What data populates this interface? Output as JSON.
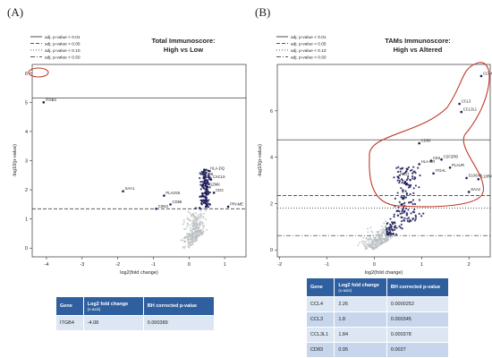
{
  "panels": [
    {
      "letter": "(A)"
    },
    {
      "letter": "(B)"
    }
  ],
  "legend": [
    "adj. p-value < 0.01",
    "adj. p-value < 0.05",
    "adj. p-value < 0.10",
    "adj. p-value < 0.50"
  ],
  "chart_data": [
    {
      "type": "scatter",
      "title": "Total Immunoscore:",
      "subtitle": "High vs Low",
      "xlabel": "log2(fold change)",
      "ylabel": "-log10(p-value)",
      "xlim": [
        -4.4,
        1.6
      ],
      "ylim": [
        -0.3,
        6.3
      ],
      "xticks": [
        "-4",
        "-3",
        "-2",
        "-1",
        "0",
        "1"
      ],
      "yticks": [
        "0",
        "1",
        "2",
        "3",
        "4",
        "5",
        "6"
      ],
      "thresholds": [
        {
          "y": 5.15,
          "style": "solid"
        },
        {
          "y": 1.35,
          "style": "dashed"
        }
      ],
      "labels": [
        {
          "text": "ITGB4",
          "x": -4.08,
          "y": 5.0
        },
        {
          "text": "SAA1",
          "x": -1.85,
          "y": 1.95
        },
        {
          "text": "PLA2G6",
          "x": -0.7,
          "y": 1.8
        },
        {
          "text": "CD58",
          "x": -0.52,
          "y": 1.5
        },
        {
          "text": "CSN3",
          "x": -0.92,
          "y": 1.35
        },
        {
          "text": "PRAME",
          "x": 1.1,
          "y": 1.42
        },
        {
          "text": "HLA-DQ",
          "x": 0.55,
          "y": 2.65
        },
        {
          "text": "CD8",
          "x": 0.42,
          "y": 2.45
        },
        {
          "text": "CXCL9",
          "x": 0.62,
          "y": 2.35
        },
        {
          "text": "GZMK",
          "x": 0.52,
          "y": 2.1
        },
        {
          "text": "CD3",
          "x": 0.7,
          "y": 1.9
        }
      ],
      "table": {
        "headers": [
          "Gene",
          "Log2 fold change",
          "BH corrected p-value"
        ],
        "header_sub": [
          "",
          "(x-axis)",
          ""
        ],
        "rows": [
          [
            "ITGB4",
            "-4.08",
            "0.000389"
          ]
        ]
      }
    },
    {
      "type": "scatter",
      "title": "TAMs Immunoscore:",
      "subtitle": "High vs Altered",
      "xlabel": "log2(fold change)",
      "ylabel": "-log10(p-value)",
      "xlim": [
        -2.05,
        2.45
      ],
      "ylim": [
        -0.3,
        8.0
      ],
      "xticks": [
        "-2",
        "-1",
        "0",
        "1",
        "2"
      ],
      "yticks": [
        "0",
        "2",
        "4",
        "6"
      ],
      "thresholds": [
        {
          "y": 4.75,
          "style": "solid"
        },
        {
          "y": 2.35,
          "style": "dashed"
        },
        {
          "y": 1.8,
          "style": "dotted"
        },
        {
          "y": 0.62,
          "style": "dashdot"
        }
      ],
      "labels": [
        {
          "text": "CCL4",
          "x": 2.26,
          "y": 7.5
        },
        {
          "text": "CCL3",
          "x": 1.8,
          "y": 6.3
        },
        {
          "text": "CCL3L1",
          "x": 1.84,
          "y": 5.95
        },
        {
          "text": "CD83",
          "x": 0.95,
          "y": 4.6
        },
        {
          "text": "CSF2RB",
          "x": 1.42,
          "y": 3.9
        },
        {
          "text": "CD4",
          "x": 1.2,
          "y": 3.85
        },
        {
          "text": "PLAUR",
          "x": 1.6,
          "y": 3.55
        },
        {
          "text": "ATG7",
          "x": 0.5,
          "y": 3.15
        },
        {
          "text": "S100A8",
          "x": 1.95,
          "y": 3.1
        },
        {
          "text": "IL10RA",
          "x": 2.2,
          "y": 3.05
        },
        {
          "text": "HLA-DR",
          "x": 0.95,
          "y": 3.7
        },
        {
          "text": "ITGAL",
          "x": 1.25,
          "y": 3.3
        },
        {
          "text": "SAA2",
          "x": 2.0,
          "y": 2.5
        }
      ],
      "table": {
        "headers": [
          "Gene",
          "Log2 fold change",
          "BH corrected p-value"
        ],
        "header_sub": [
          "",
          "(x-axis)",
          ""
        ],
        "rows": [
          [
            "CCL4",
            "2.26",
            "0.0000252"
          ],
          [
            "CCL3",
            "1.8",
            "0.000345"
          ],
          [
            "CCL3L1",
            "1.84",
            "0.000378"
          ],
          [
            "CD83",
            "0.95",
            "0.0027"
          ]
        ]
      }
    }
  ]
}
